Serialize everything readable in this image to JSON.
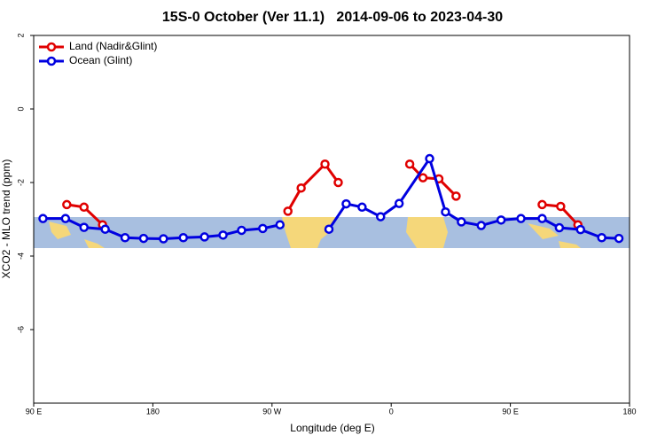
{
  "chart_data": {
    "type": "line",
    "title": "15S-0 October (Ver 11.1)   2014-09-06 to 2023-04-30",
    "x_label": "Longitude (deg E)",
    "y_label": "XCO2 - MLO trend (ppm)",
    "xlim": [
      90,
      540
    ],
    "ylim": [
      -8,
      2
    ],
    "xticks": [
      {
        "value": 90,
        "label": "90 E"
      },
      180,
      {
        "value": 270,
        "label": "90 W"
      },
      {
        "value": 360,
        "label": "0"
      },
      {
        "value": 450,
        "label": "90 E"
      },
      {
        "value": 540,
        "label": "180"
      }
    ],
    "yticks": [
      2,
      0,
      -2,
      -4,
      -6
    ],
    "legend": "top-left",
    "series": [
      {
        "name": "Land (Nadir&Glint)",
        "color": "#e00000",
        "x": [
          115,
          128,
          142,
          null,
          282,
          292,
          310,
          320,
          null,
          374,
          384,
          396,
          409,
          null,
          474,
          488,
          501
        ],
        "values": [
          -2.6,
          -2.67,
          -3.15,
          null,
          -2.78,
          -2.15,
          -1.5,
          -2.0,
          null,
          -1.5,
          -1.87,
          -1.9,
          -2.37,
          null,
          -2.6,
          -2.65,
          -3.15
        ]
      },
      {
        "name": "Ocean (Glint)",
        "color": "#0000e0",
        "x": [
          97,
          114,
          128,
          144,
          159,
          173,
          188,
          203,
          219,
          233,
          247,
          263,
          276,
          null,
          313,
          326,
          338,
          352,
          366,
          389,
          401,
          413,
          428,
          443,
          458,
          474,
          487,
          503,
          519,
          532
        ],
        "values": [
          -2.98,
          -2.98,
          -3.22,
          -3.27,
          -3.5,
          -3.52,
          -3.53,
          -3.5,
          -3.48,
          -3.43,
          -3.3,
          -3.25,
          -3.15,
          null,
          -3.27,
          -2.58,
          -2.67,
          -2.93,
          -2.57,
          -1.35,
          -2.8,
          -3.07,
          -3.17,
          -3.02,
          -2.98,
          -2.98,
          -3.23,
          -3.28,
          -3.5,
          -3.52
        ]
      }
    ]
  }
}
